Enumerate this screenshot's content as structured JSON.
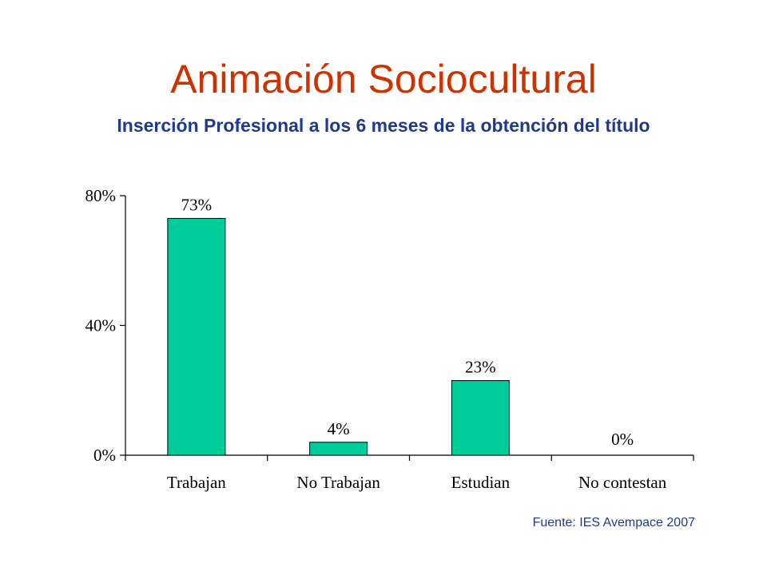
{
  "slide": {
    "title": "Animación Sociocultural",
    "subtitle": "Inserción Profesional a los 6 meses de la obtención del título",
    "source": "Fuente: IES Avempace 2007"
  },
  "colors": {
    "title": "#cc3300",
    "subtitle": "#1f3a8c",
    "bar": "#00cc99"
  },
  "chart_data": {
    "type": "bar",
    "categories": [
      "Trabajan",
      "No Trabajan",
      "Estudian",
      "No contestan"
    ],
    "values": [
      73,
      4,
      23,
      0
    ],
    "value_labels": [
      "73%",
      "4%",
      "23%",
      "0%"
    ],
    "yticks": [
      0,
      40,
      80
    ],
    "ytick_labels": [
      "0%",
      "40%",
      "80%"
    ],
    "ylim": [
      0,
      80
    ],
    "grid": false,
    "legend": "none"
  }
}
